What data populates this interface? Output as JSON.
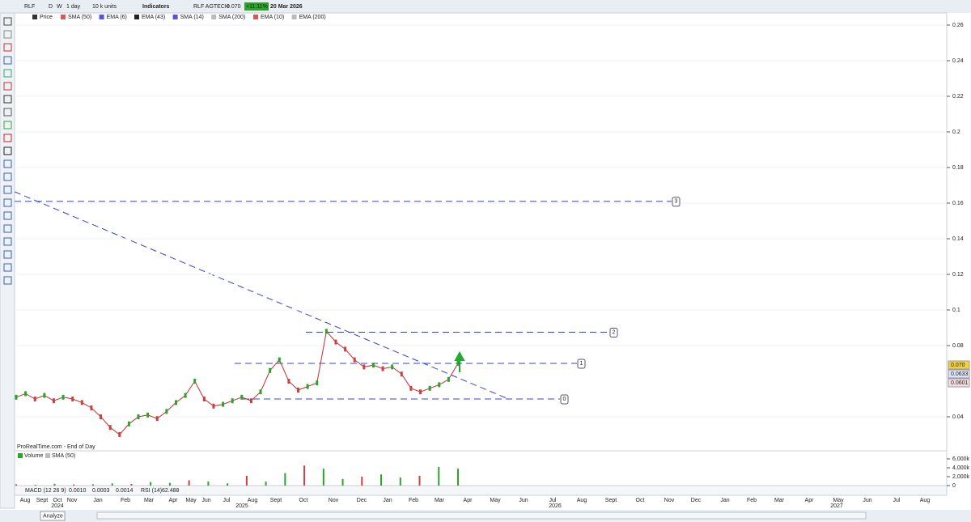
{
  "toolbar": {
    "ticker": "RLF",
    "period_d": "D",
    "period_w": "W",
    "interval": "1 day",
    "units": "10 k units",
    "indicators": "Indicators",
    "name": "RLF AGTECH",
    "last": "0.070",
    "change": "+11.11%",
    "date": "20 Mar 2026"
  },
  "legend": [
    "Price",
    "SMA (50)",
    "EMA (6)",
    "EMA (43)",
    "SMA (14)",
    "SMA (200)",
    "EMA (10)",
    "EMA (200)"
  ],
  "source": "ProRealTime.com - End of Day",
  "price_axis": {
    "ylim": [
      0.04,
      0.26
    ],
    "yticks": [
      0.26,
      0.24,
      0.22,
      0.2,
      0.18,
      0.16,
      0.14,
      0.12,
      0.1,
      0.08,
      0.04
    ],
    "tags": [
      "0.070",
      "0.0633",
      "0.0601"
    ]
  },
  "price_series": [
    0.051,
    0.053,
    0.05,
    0.052,
    0.049,
    0.051,
    0.05,
    0.048,
    0.045,
    0.04,
    0.034,
    0.03,
    0.036,
    0.04,
    0.041,
    0.039,
    0.043,
    0.048,
    0.052,
    0.06,
    0.05,
    0.046,
    0.047,
    0.049,
    0.051,
    0.049,
    0.054,
    0.066,
    0.072,
    0.06,
    0.055,
    0.057,
    0.059,
    0.088,
    0.082,
    0.078,
    0.072,
    0.068,
    0.069,
    0.067,
    0.068,
    0.064,
    0.056,
    0.054,
    0.056,
    0.058,
    0.061,
    0.07
  ],
  "levels": [
    {
      "label": "0",
      "value": 0.05
    },
    {
      "label": "1",
      "value": 0.07
    },
    {
      "label": "2",
      "value": 0.0875
    },
    {
      "label": "3",
      "value": 0.161
    }
  ],
  "volume_panel": {
    "legend": [
      "Volume",
      "SMA (50)"
    ],
    "ylim": [
      0,
      6000
    ],
    "yticks": [
      {
        "value": 6000,
        "label": "6,000k"
      },
      {
        "value": 4000,
        "label": "4,000k"
      },
      {
        "value": 2000,
        "label": "2,000k"
      },
      0
    ],
    "values": [
      300,
      200,
      400,
      250,
      300,
      500,
      350,
      800,
      600,
      1200,
      900,
      500,
      2200,
      900,
      2800,
      4500,
      3800,
      1500,
      2000,
      2500,
      1800,
      2200,
      4200,
      3800
    ]
  },
  "indicator_bar": {
    "macd": "MACD (12 26 9)",
    "macd_values": [
      "0.0010",
      "0.0003",
      "0.0014"
    ],
    "rsi": "RSI (14)",
    "rsi_value": "62.488"
  },
  "date_axis": {
    "months": [
      "Aug",
      "Sept",
      "Oct",
      "Nov",
      "Jan",
      "Feb",
      "Mar",
      "Apr",
      "May",
      "Jun",
      "Jul",
      "Aug",
      "Sept",
      "Oct",
      "Nov",
      "Dec",
      "Jan",
      "Feb",
      "Mar",
      "Apr",
      "May",
      "Jun",
      "Jul",
      "Aug",
      "Sept",
      "Oct",
      "Nov",
      "Dec",
      "Jan",
      "Feb",
      "Mar",
      "Apr",
      "May",
      "Jun",
      "Jul",
      "Aug"
    ],
    "years": [
      "2024",
      "2025",
      "2026",
      "2027"
    ]
  },
  "bottom_bar": {
    "analyze": "Analyze"
  }
}
